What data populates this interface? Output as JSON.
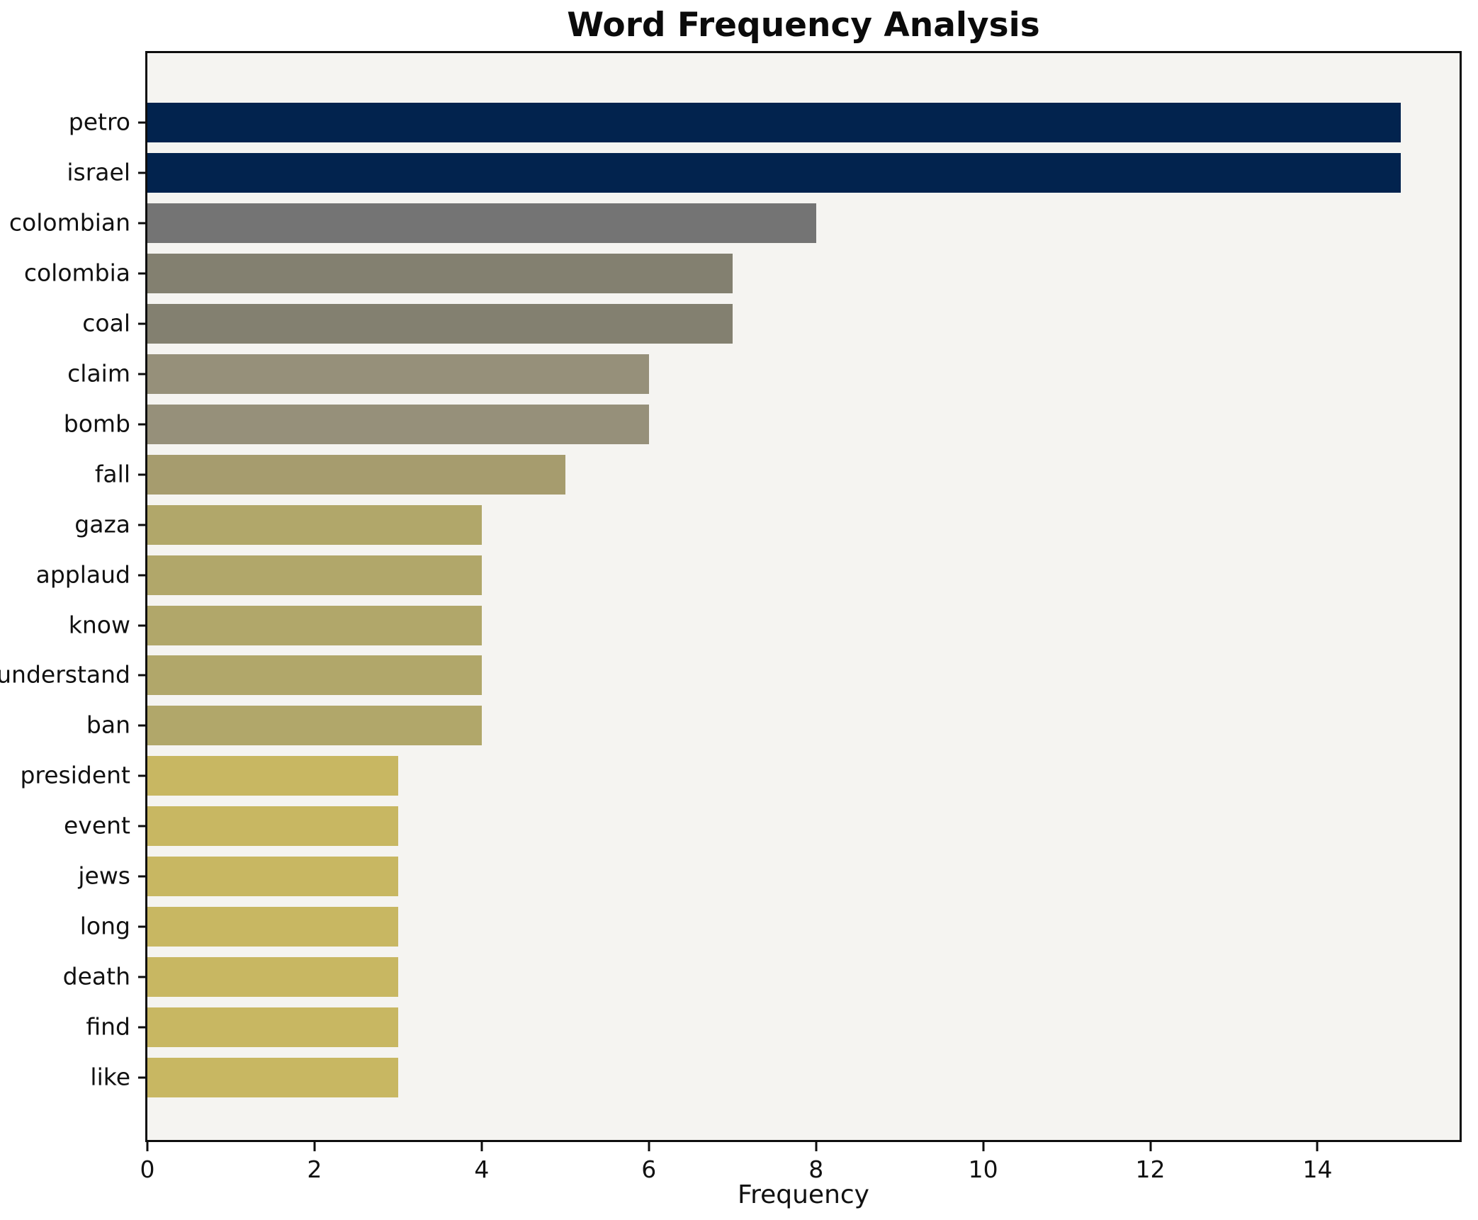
{
  "chart_data": {
    "type": "bar",
    "orientation": "horizontal",
    "title": "Word Frequency Analysis",
    "xlabel": "Frequency",
    "ylabel": "",
    "grid": false,
    "legend": null,
    "xlim": [
      0,
      15.7
    ],
    "xticks": [
      0,
      2,
      4,
      6,
      8,
      10,
      12,
      14
    ],
    "categories": [
      "petro",
      "israel",
      "colombian",
      "colombia",
      "coal",
      "claim",
      "bomb",
      "fall",
      "gaza",
      "applaud",
      "know",
      "understand",
      "ban",
      "president",
      "event",
      "jews",
      "long",
      "death",
      "find",
      "like"
    ],
    "values": [
      15,
      15,
      8,
      7,
      7,
      6,
      6,
      5,
      4,
      4,
      4,
      4,
      4,
      3,
      3,
      3,
      3,
      3,
      3,
      3
    ],
    "bar_colors": [
      "#02234e",
      "#02234e",
      "#747474",
      "#838070",
      "#838070",
      "#96907a",
      "#96907a",
      "#a69c6e",
      "#b1a76a",
      "#b1a76a",
      "#b1a76a",
      "#b1a76a",
      "#b1a76a",
      "#c8b762",
      "#c8b762",
      "#c8b762",
      "#c8b762",
      "#c8b762",
      "#c8b762",
      "#c8b762"
    ],
    "colors": {
      "plot_background": "#f5f4f1",
      "figure_background": "#ffffff",
      "spine": "#0e0e0e",
      "text": "#111111"
    }
  }
}
